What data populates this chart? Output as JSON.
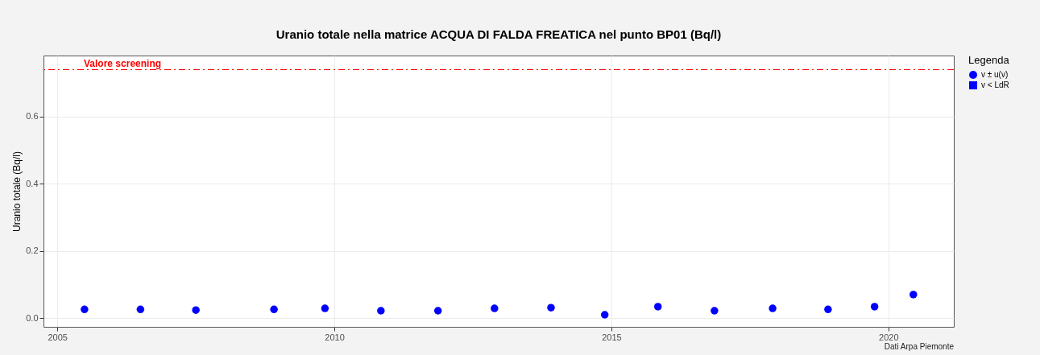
{
  "chart_data": {
    "type": "scatter",
    "title": "Uranio totale nella matrice ACQUA DI FALDA FREATICA nel punto BP01 (Bq/l)",
    "ylabel": "Uranio totale (Bq/l)",
    "legend_title": "Legenda",
    "legend": "right",
    "grid": true,
    "x": [
      2005.49,
      2006.5,
      2007.5,
      2008.91,
      2009.83,
      2010.84,
      2011.87,
      2012.89,
      2013.91,
      2014.88,
      2015.84,
      2016.86,
      2017.91,
      2018.91,
      2019.75,
      2020.45
    ],
    "series": [
      {
        "name": "v ± u(v)",
        "color": "#0000ff",
        "marker": "circle",
        "values": [
          0.026,
          0.026,
          0.024,
          0.026,
          0.029,
          0.022,
          0.022,
          0.029,
          0.031,
          0.01,
          0.034,
          0.022,
          0.029,
          0.026,
          0.034,
          0.07
        ]
      },
      {
        "name": "v < LdR",
        "color": "#0000ff",
        "marker": "square",
        "values": [
          null,
          null,
          null,
          null,
          null,
          null,
          null,
          null,
          null,
          null,
          null,
          null,
          null,
          null,
          null,
          null
        ]
      }
    ],
    "xlim": [
      2004.75,
      2021.18
    ],
    "xticks": [
      2005,
      2010,
      2015,
      2020
    ],
    "ylim": [
      -0.026,
      0.782
    ],
    "yticks": [
      {
        "value": 0,
        "label": "0.0"
      },
      {
        "value": 0.2,
        "label": "0.2"
      },
      {
        "value": 0.4,
        "label": "0.4"
      },
      {
        "value": 0.6,
        "label": "0.6"
      }
    ],
    "ref_lines": [
      {
        "axis": "y",
        "value": 0.74,
        "label": "Valore screening",
        "color": "#ff0000",
        "line_style": "dashed"
      }
    ],
    "annotations": [
      "Dati Arpa Piemonte"
    ]
  }
}
